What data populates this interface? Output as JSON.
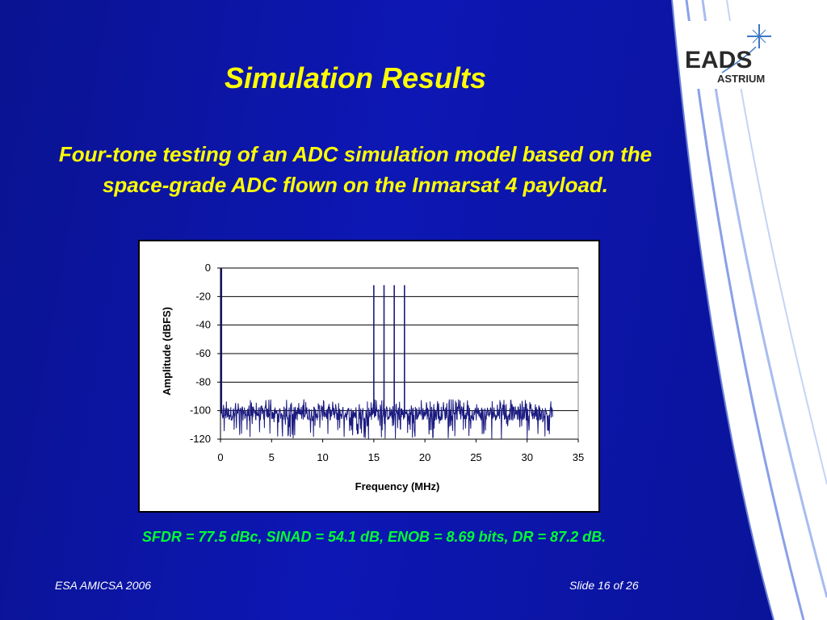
{
  "slide": {
    "title": "Simulation Results",
    "subtitle": "Four-tone testing of an ADC simulation model based on the space-grade ADC flown on the Inmarsat 4 payload.",
    "stats_line": "SFDR = 77.5 dBc, SINAD = 54.1 dB, ENOB = 8.69 bits,  DR = 87.2 dB.",
    "footer_left": "ESA AMICSA 2006",
    "footer_right": "Slide 16 of 26"
  },
  "logo": {
    "line1": "EADS",
    "line2": "ASTRIUM",
    "icon": "star-cross-icon",
    "text_color": "#2a2a2a",
    "star_color": "#3a78c8"
  },
  "colors": {
    "background": "#0b14a8",
    "title": "#ffff00",
    "stats": "#00ff33",
    "footer": "#ffffff",
    "series": "#1a1a80"
  },
  "chart_data": {
    "type": "line",
    "xlabel": "Frequency (MHz)",
    "ylabel": "Amplitude (dBFS)",
    "xlim": [
      0,
      35
    ],
    "ylim": [
      -120,
      0
    ],
    "xticks": [
      0,
      5,
      10,
      15,
      20,
      25,
      30,
      35
    ],
    "yticks": [
      0,
      -20,
      -40,
      -60,
      -80,
      -100,
      -120
    ],
    "grid": "horizontal",
    "legend": "none",
    "x_end": 32.5,
    "noise_floor_dbfs": -102,
    "noise_peak_dbfs": -92,
    "noise_trough_dbfs": -120,
    "tones": [
      {
        "freq": 0.1,
        "amplitude": 0
      },
      {
        "freq": 15.0,
        "amplitude": -12
      },
      {
        "freq": 16.0,
        "amplitude": -12
      },
      {
        "freq": 17.0,
        "amplitude": -12
      },
      {
        "freq": 18.0,
        "amplitude": -12
      }
    ]
  }
}
